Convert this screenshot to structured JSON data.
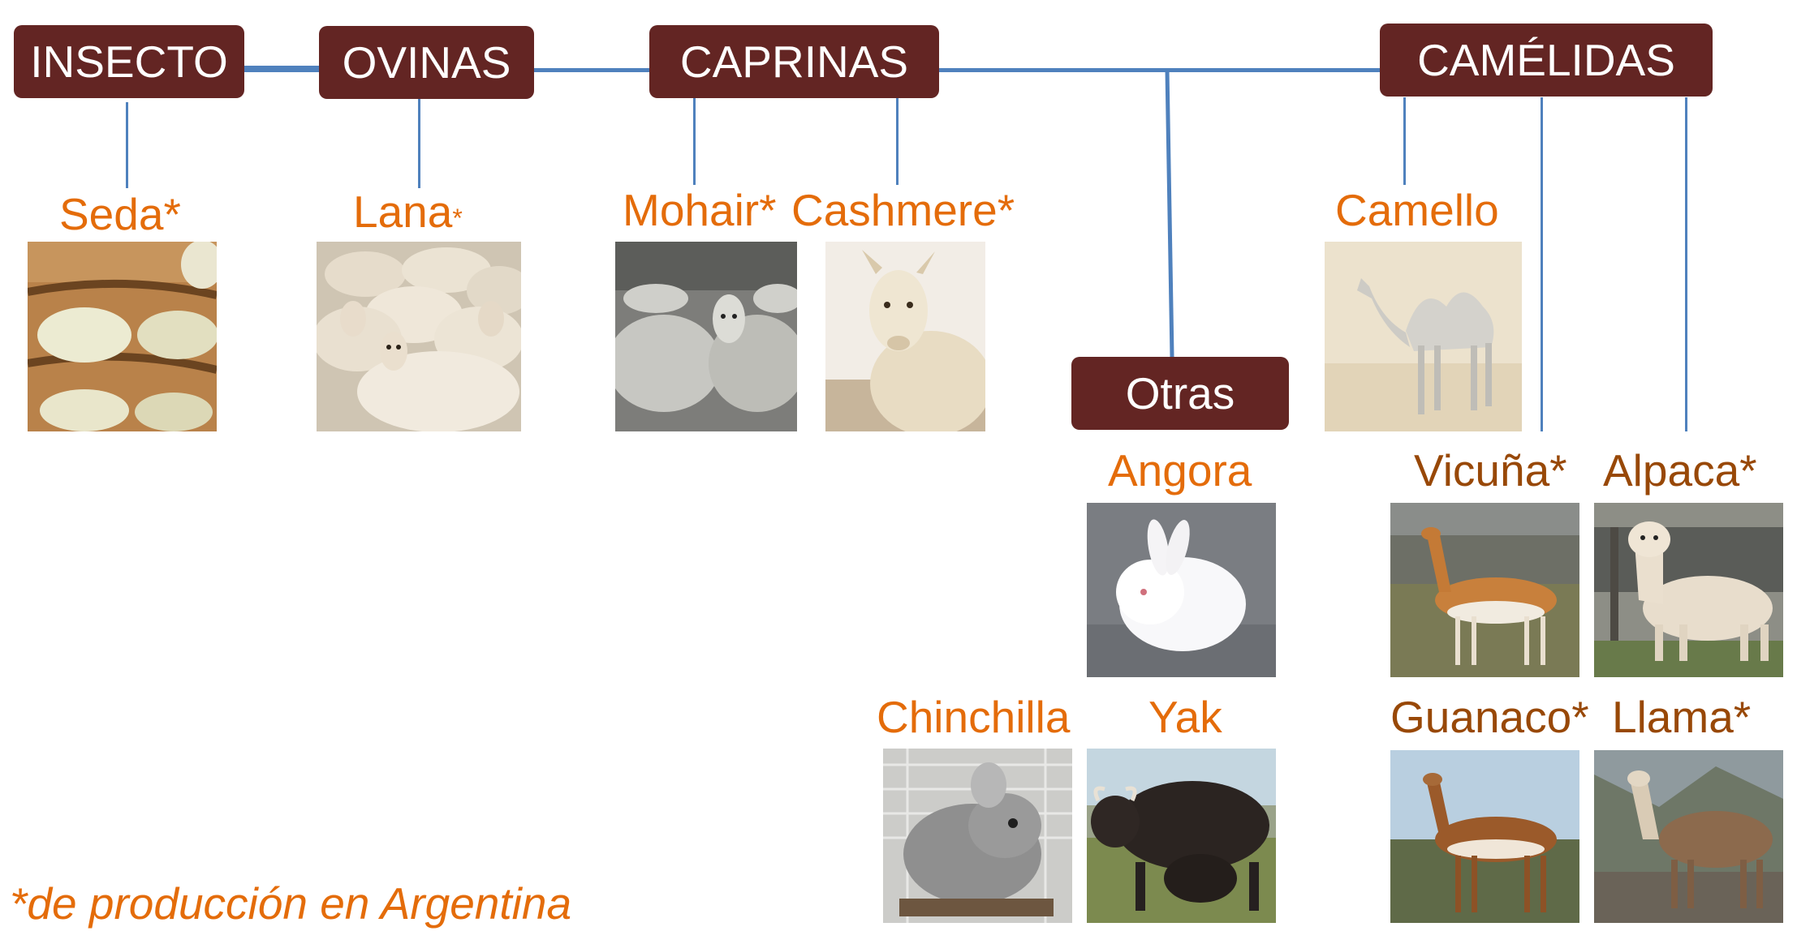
{
  "categories": {
    "insecto": "INSECTO",
    "ovinas": "OVINAS",
    "caprinas": "CAPRINAS",
    "camelidas": "CAMÉLIDAS",
    "otras": "Otras"
  },
  "fibers": {
    "seda": "Seda*",
    "lana": "Lana",
    "lana_mark": "*",
    "mohair": "Mohair*",
    "cashmere": "Cashmere*",
    "camello": "Camello",
    "angora": "Angora",
    "vicuna": "Vicuña*",
    "alpaca": "Alpaca*",
    "chinchilla": "Chinchilla",
    "yak": "Yak",
    "guanaco": "Guanaco*",
    "llama": "Llama*"
  },
  "footnote": "*de producción en Argentina",
  "colors": {
    "box": "#632523",
    "connector": "#4f81bd",
    "label": "#e46c0a",
    "label_dark": "#984807"
  },
  "icons": {
    "seda": "silk-cocoons-photo",
    "lana": "sheep-flock-photo",
    "mohair": "angora-goats-photo",
    "cashmere": "cashmere-goat-photo",
    "camello": "camel-photo",
    "angora": "angora-rabbit-photo",
    "vicuna": "vicuna-photo",
    "alpaca": "alpaca-photo",
    "chinchilla": "chinchilla-photo",
    "yak": "yak-photo",
    "guanaco": "guanaco-photo",
    "llama": "llama-photo"
  }
}
